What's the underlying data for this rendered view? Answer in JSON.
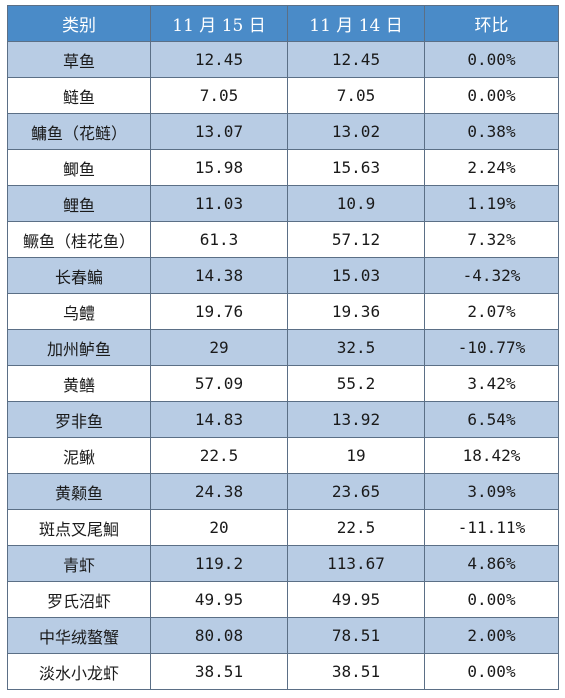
{
  "table": {
    "headers": {
      "category": "类别",
      "today": "11 月 15 日",
      "yesterday": "11 月 14 日",
      "change": "环比"
    },
    "rows": [
      {
        "name": "草鱼",
        "today": "12.45",
        "yesterday": "12.45",
        "change": "0.00%"
      },
      {
        "name": "鲢鱼",
        "today": "7.05",
        "yesterday": "7.05",
        "change": "0.00%"
      },
      {
        "name": "鳙鱼（花鲢）",
        "today": "13.07",
        "yesterday": "13.02",
        "change": "0.38%"
      },
      {
        "name": "鲫鱼",
        "today": "15.98",
        "yesterday": "15.63",
        "change": "2.24%"
      },
      {
        "name": "鲤鱼",
        "today": "11.03",
        "yesterday": "10.9",
        "change": "1.19%"
      },
      {
        "name": "鳜鱼（桂花鱼）",
        "today": "61.3",
        "yesterday": "57.12",
        "change": "7.32%"
      },
      {
        "name": "长春鳊",
        "today": "14.38",
        "yesterday": "15.03",
        "change": "-4.32%"
      },
      {
        "name": "乌鳢",
        "today": "19.76",
        "yesterday": "19.36",
        "change": "2.07%"
      },
      {
        "name": "加州鲈鱼",
        "today": "29",
        "yesterday": "32.5",
        "change": "-10.77%"
      },
      {
        "name": "黄鳝",
        "today": "57.09",
        "yesterday": "55.2",
        "change": "3.42%"
      },
      {
        "name": "罗非鱼",
        "today": "14.83",
        "yesterday": "13.92",
        "change": "6.54%"
      },
      {
        "name": "泥鳅",
        "today": "22.5",
        "yesterday": "19",
        "change": "18.42%"
      },
      {
        "name": "黄颡鱼",
        "today": "24.38",
        "yesterday": "23.65",
        "change": "3.09%"
      },
      {
        "name": "斑点叉尾鮰",
        "today": "20",
        "yesterday": "22.5",
        "change": "-11.11%"
      },
      {
        "name": "青虾",
        "today": "119.2",
        "yesterday": "113.67",
        "change": "4.86%"
      },
      {
        "name": "罗氏沼虾",
        "today": "49.95",
        "yesterday": "49.95",
        "change": "0.00%"
      },
      {
        "name": "中华绒螯蟹",
        "today": "80.08",
        "yesterday": "78.51",
        "change": "2.00%"
      },
      {
        "name": "淡水小龙虾",
        "today": "38.51",
        "yesterday": "38.51",
        "change": "0.00%"
      }
    ]
  }
}
